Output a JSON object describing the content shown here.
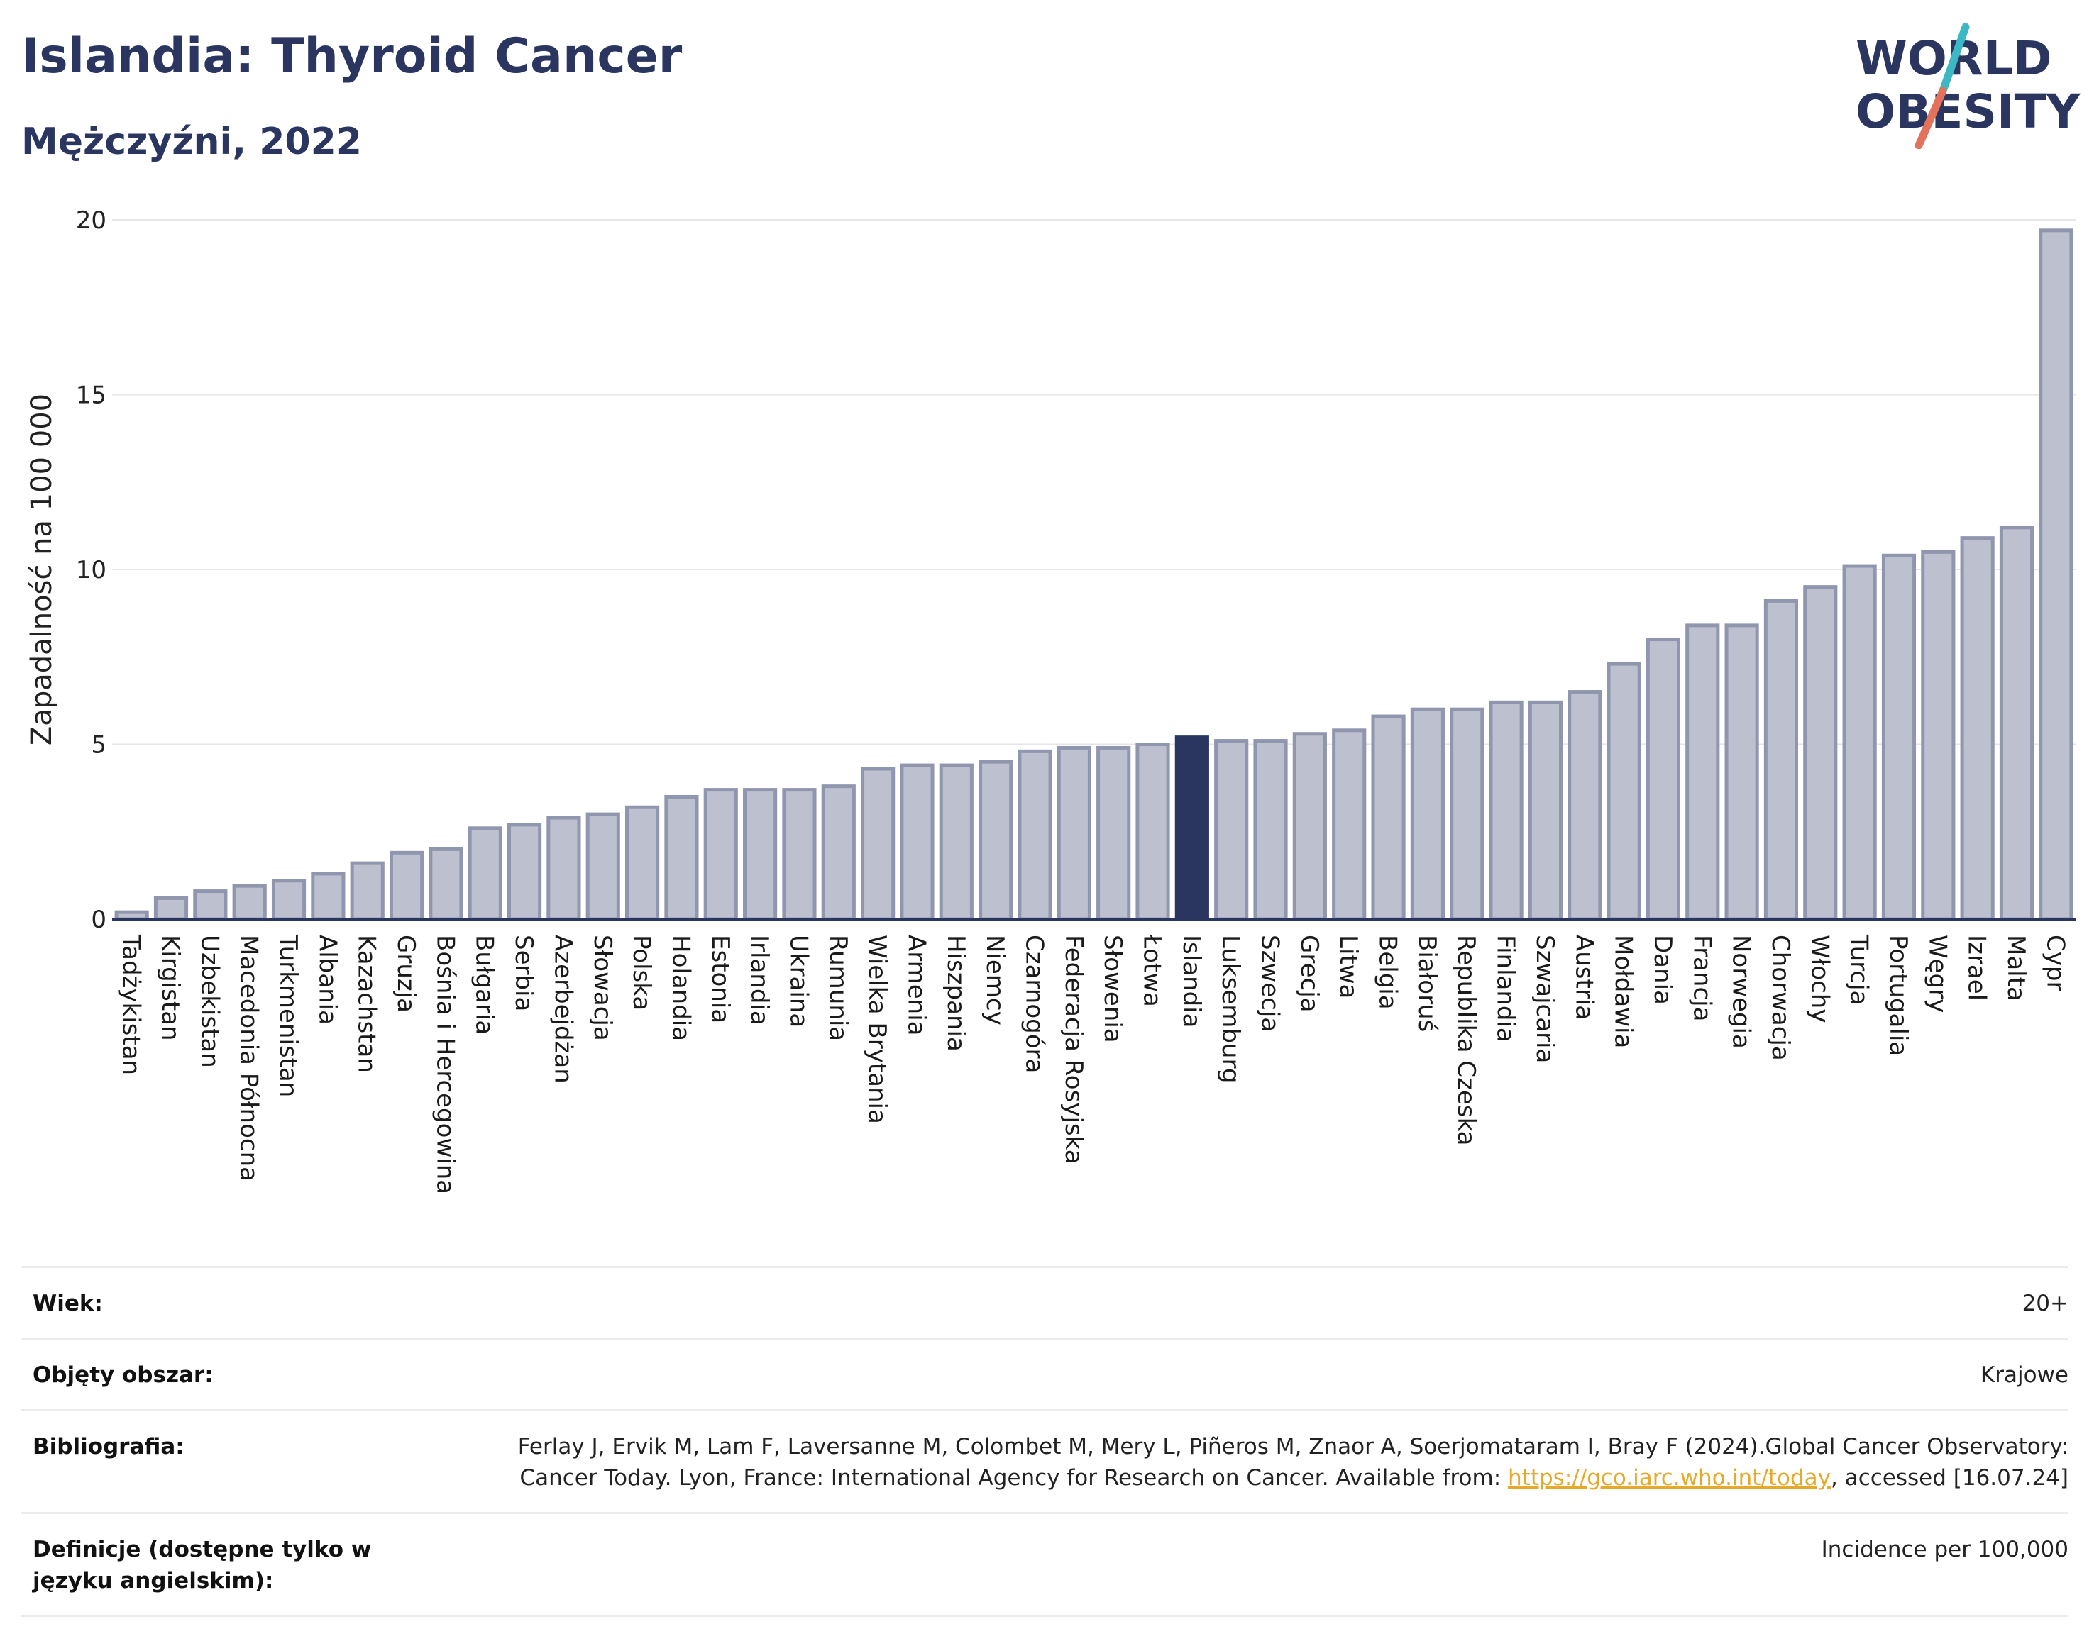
{
  "header": {
    "title": "Islandia: Thyroid Cancer",
    "subtitle": "Mężczyźni, 2022"
  },
  "logo": {
    "text_line1": "WORLD",
    "text_line2": "OBESITY",
    "colors": {
      "text": "#2b3660",
      "slash_top": "#3bb8c3",
      "slash_bottom": "#e2725b"
    }
  },
  "colors": {
    "bar": "#bcc0cf",
    "bar_stroke": "#9096ad",
    "highlight": "#2b3660",
    "grid": "#e6e6e6",
    "axis": "#2b3660"
  },
  "chart_data": {
    "type": "bar",
    "ylabel": "Zapadalność na 100 000",
    "xlabel": "",
    "ylim": [
      0,
      20
    ],
    "yticks": [
      0,
      5,
      10,
      15,
      20
    ],
    "grid": true,
    "highlight": "Islandia",
    "categories": [
      "Tadżykistan",
      "Kirgistan",
      "Uzbekistan",
      "Macedonia Północna",
      "Turkmenistan",
      "Albania",
      "Kazachstan",
      "Gruzja",
      "Bośnia i Hercegowina",
      "Bułgaria",
      "Serbia",
      "Azerbejdżan",
      "Słowacja",
      "Polska",
      "Holandia",
      "Estonia",
      "Irlandia",
      "Ukraina",
      "Rumunia",
      "Wielka Brytania",
      "Armenia",
      "Hiszpania",
      "Niemcy",
      "Czarnogóra",
      "Federacja Rosyjska",
      "Słowenia",
      "Łotwa",
      "Islandia",
      "Luksemburg",
      "Szwecja",
      "Grecja",
      "Litwa",
      "Belgia",
      "Białoruś",
      "Republika Czeska",
      "Finlandia",
      "Szwajcaria",
      "Austria",
      "Mołdawia",
      "Dania",
      "Francja",
      "Norwegia",
      "Chorwacja",
      "Włochy",
      "Turcja",
      "Portugalia",
      "Węgry",
      "Izrael",
      "Malta",
      "Cypr"
    ],
    "values": [
      0.2,
      0.6,
      0.8,
      0.95,
      1.1,
      1.3,
      1.6,
      1.9,
      2.0,
      2.6,
      2.7,
      2.9,
      3.0,
      3.2,
      3.5,
      3.7,
      3.7,
      3.7,
      3.8,
      4.3,
      4.4,
      4.4,
      4.5,
      4.8,
      4.9,
      4.9,
      5.0,
      5.2,
      5.1,
      5.1,
      5.3,
      5.4,
      5.8,
      6.0,
      6.0,
      6.2,
      6.2,
      6.5,
      7.3,
      8.0,
      8.4,
      8.4,
      9.1,
      9.5,
      10.1,
      10.4,
      10.5,
      10.9,
      11.2,
      19.7
    ]
  },
  "meta": {
    "age_label": "Wiek:",
    "age_value": "20+",
    "coverage_label": "Objęty obszar:",
    "coverage_value": "Krajowe",
    "bibliography_label": "Bibliografia:",
    "bibliography_text": "Ferlay J, Ervik M, Lam F, Laversanne M, Colombet M, Mery L, Piñeros M, Znaor A, Soerjomataram I, Bray F (2024).Global Cancer Observatory: Cancer Today. Lyon, France: International Agency for Research on Cancer. Available from: ",
    "bibliography_link": "https://gco.iarc.who.int/today",
    "bibliography_suffix": ", accessed [16.07.24]",
    "definitions_label": "Definicje (dostępne tylko w języku angielskim):",
    "definitions_value": "Incidence per 100,000"
  }
}
